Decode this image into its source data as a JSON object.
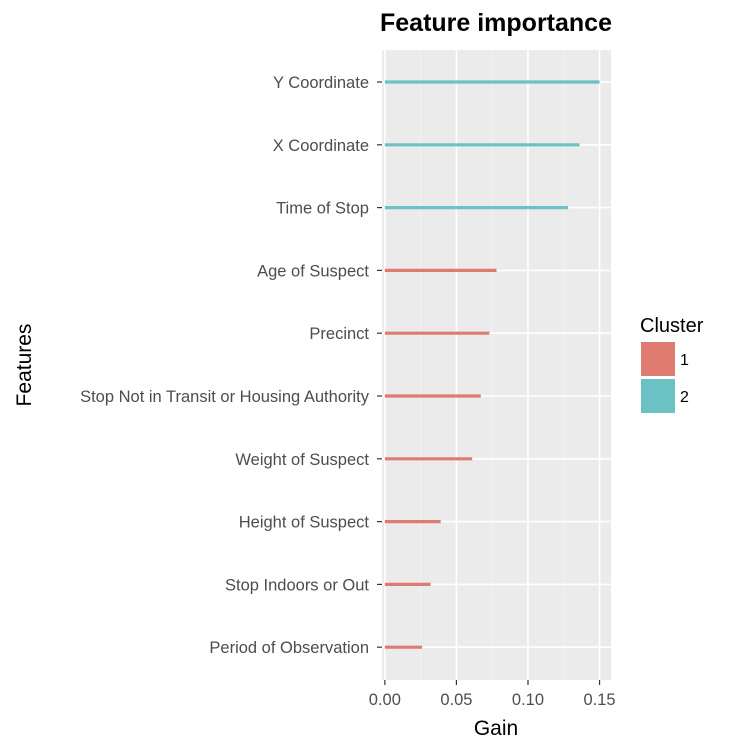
{
  "chart_data": {
    "type": "bar",
    "orientation": "horizontal",
    "title": "Feature importance",
    "xlabel": "Gain",
    "ylabel": "Features",
    "xlim": [
      -0.002,
      0.158
    ],
    "xticks": [
      0.0,
      0.05,
      0.1,
      0.15
    ],
    "xtick_labels": [
      "0.00",
      "0.05",
      "0.10",
      "0.15"
    ],
    "grid": true,
    "panel_background": "#ebebeb",
    "legend": {
      "title": "Cluster",
      "position": "right",
      "entries": [
        {
          "label": "1",
          "color": "#e07b72"
        },
        {
          "label": "2",
          "color": "#6cc1c4"
        }
      ]
    },
    "categories": [
      "Y Coordinate",
      "X Coordinate",
      "Time of Stop",
      "Age of Suspect",
      "Precinct",
      "Stop Not in Transit or Housing Authority",
      "Weight of Suspect",
      "Height of Suspect",
      "Stop Indoors or Out",
      "Period of Observation"
    ],
    "values": [
      0.15,
      0.136,
      0.128,
      0.078,
      0.073,
      0.067,
      0.061,
      0.039,
      0.032,
      0.026
    ],
    "clusters": [
      "2",
      "2",
      "2",
      "1",
      "1",
      "1",
      "1",
      "1",
      "1",
      "1"
    ]
  }
}
